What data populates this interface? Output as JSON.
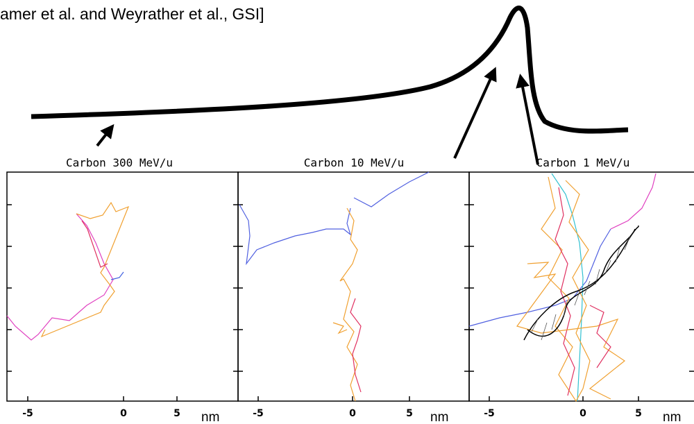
{
  "header": {
    "text": "amer et al. and Weyrather et al., GSI]"
  },
  "panels": [
    {
      "title": "Carbon 300 MeV/u",
      "x_tick_labels": [
        "-5",
        "0",
        "5"
      ],
      "unit": "nm"
    },
    {
      "title": "Carbon 10 MeV/u",
      "x_tick_labels": [
        "-5",
        "0",
        "5"
      ],
      "unit": "nm"
    },
    {
      "title": "Carbon 1 MeV/u",
      "x_tick_labels": [
        "-5",
        "0",
        "5"
      ],
      "unit": "nm"
    }
  ]
}
